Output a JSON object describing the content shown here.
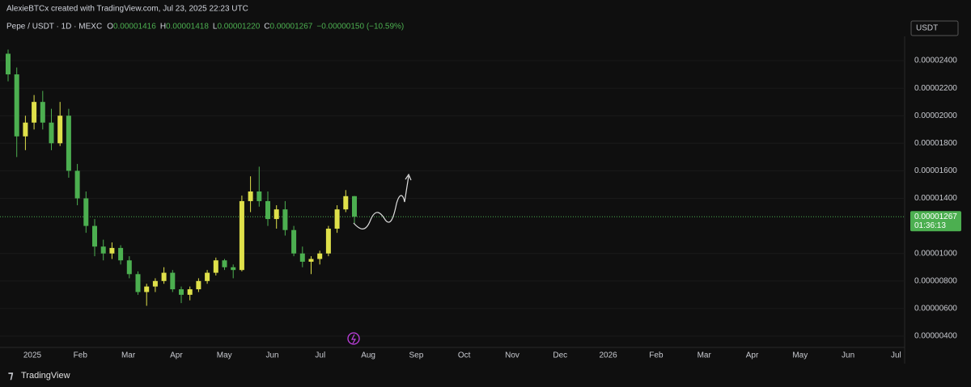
{
  "header": {
    "credit": "AlexieBTCx created with TradingView.com, Jul 23, 2025 22:23 UTC"
  },
  "chart_data": {
    "type": "candlestick",
    "symbol": "Pepe / USDT · 1D · MEXC",
    "ohlc_legend": [
      {
        "key": "O",
        "text": "0.00001416"
      },
      {
        "key": "H",
        "text": "0.00001418"
      },
      {
        "key": "L",
        "text": "0.00001220"
      },
      {
        "key": "C",
        "text": "0.00001267"
      }
    ],
    "change_text": "−0.00000150 (−10.59%)",
    "currency": "USDT",
    "up_color": "#dfe04a",
    "down_color": "#4caf50",
    "candles": {
      "open": [
        2.45e-05,
        2.3e-05,
        1.85e-05,
        1.95e-05,
        2.1e-05,
        1.95e-05,
        1.8e-05,
        2e-05,
        1.6e-05,
        1.4e-05,
        1.2e-05,
        1.05e-05,
        1e-05,
        1.04e-05,
        9.5e-06,
        8.5e-06,
        7.2e-06,
        7.6e-06,
        8e-06,
        8.6e-06,
        7.4e-06,
        7e-06,
        7.4e-06,
        8e-06,
        8.6e-06,
        9.5e-06,
        9e-06,
        8.8e-06,
        1.38e-05,
        1.45e-05,
        1.38e-05,
        1.25e-05,
        1.32e-05,
        1.17e-05,
        1e-05,
        9.4e-06,
        9.6e-06,
        1e-05,
        1.18e-05,
        1.32e-05,
        1.416e-05
      ],
      "high": [
        2.48e-05,
        2.35e-05,
        2e-05,
        2.15e-05,
        2.18e-05,
        2.05e-05,
        2.1e-05,
        2.05e-05,
        1.65e-05,
        1.45e-05,
        1.25e-05,
        1.1e-05,
        1.08e-05,
        1.06e-05,
        9.8e-06,
        8.7e-06,
        7.8e-06,
        8.2e-06,
        9e-06,
        8.8e-06,
        7.6e-06,
        7.6e-06,
        8.2e-06,
        8.8e-06,
        9.7e-06,
        9.6e-06,
        9.2e-06,
        1.42e-05,
        1.56e-05,
        1.63e-05,
        1.45e-05,
        1.35e-05,
        1.38e-05,
        1.2e-05,
        1.05e-05,
        9.8e-06,
        1.02e-05,
        1.2e-05,
        1.35e-05,
        1.46e-05,
        1.418e-05
      ],
      "low": [
        2.25e-05,
        1.7e-05,
        1.75e-05,
        1.9e-05,
        1.9e-05,
        1.75e-05,
        1.78e-05,
        1.55e-05,
        1.35e-05,
        1.15e-05,
        9.8e-06,
        9.5e-06,
        9.6e-06,
        9.2e-06,
        8.2e-06,
        7e-06,
        6.2e-06,
        7.2e-06,
        7.8e-06,
        7.2e-06,
        6.4e-06,
        6.6e-06,
        7.2e-06,
        7.8e-06,
        8.4e-06,
        8.8e-06,
        8.2e-06,
        8.7e-06,
        1.3e-05,
        1.34e-05,
        1.2e-05,
        1.18e-05,
        1.13e-05,
        9.8e-06,
        9e-06,
        8.5e-06,
        9.2e-06,
        9.8e-06,
        1.15e-05,
        1.3e-05,
        1.22e-05
      ],
      "close": [
        2.3e-05,
        1.85e-05,
        1.95e-05,
        2.1e-05,
        1.95e-05,
        1.8e-05,
        2e-05,
        1.6e-05,
        1.4e-05,
        1.2e-05,
        1.05e-05,
        1e-05,
        1.04e-05,
        9.5e-06,
        8.5e-06,
        7.2e-06,
        7.6e-06,
        8e-06,
        8.6e-06,
        7.4e-06,
        7e-06,
        7.4e-06,
        8e-06,
        8.6e-06,
        9.5e-06,
        9e-06,
        8.8e-06,
        1.38e-05,
        1.45e-05,
        1.38e-05,
        1.25e-05,
        1.32e-05,
        1.17e-05,
        1e-05,
        9.4e-06,
        9.6e-06,
        1e-05,
        1.18e-05,
        1.32e-05,
        1.416e-05,
        1.267e-05
      ]
    },
    "last_price": {
      "value": 1.267e-05,
      "label": "0.00001267"
    },
    "countdown": "01:36:13",
    "ylim": [
      3.18e-06,
      2.576e-05
    ],
    "yticks": [
      {
        "value": 2.4e-05,
        "label": "0.00002400"
      },
      {
        "value": 2.2e-05,
        "label": "0.00002200"
      },
      {
        "value": 2e-05,
        "label": "0.00002000"
      },
      {
        "value": 1.8e-05,
        "label": "0.00001800"
      },
      {
        "value": 1.6e-05,
        "label": "0.00001600"
      },
      {
        "value": 1.4e-05,
        "label": "0.00001400"
      },
      {
        "value": 1e-05,
        "label": "0.00001000"
      },
      {
        "value": 8e-06,
        "label": "0.00000800"
      },
      {
        "value": 6e-06,
        "label": "0.00000600"
      },
      {
        "value": 4e-06,
        "label": "0.00000400"
      }
    ],
    "x_labels": [
      "2025",
      "Feb",
      "Mar",
      "Apr",
      "May",
      "Jun",
      "Jul",
      "Aug",
      "Sep",
      "Oct",
      "Nov",
      "Dec",
      "2026",
      "Feb",
      "Mar",
      "Apr",
      "May",
      "Jun",
      "Jul"
    ],
    "grid": true
  },
  "footer": {
    "brand": "TradingView"
  }
}
